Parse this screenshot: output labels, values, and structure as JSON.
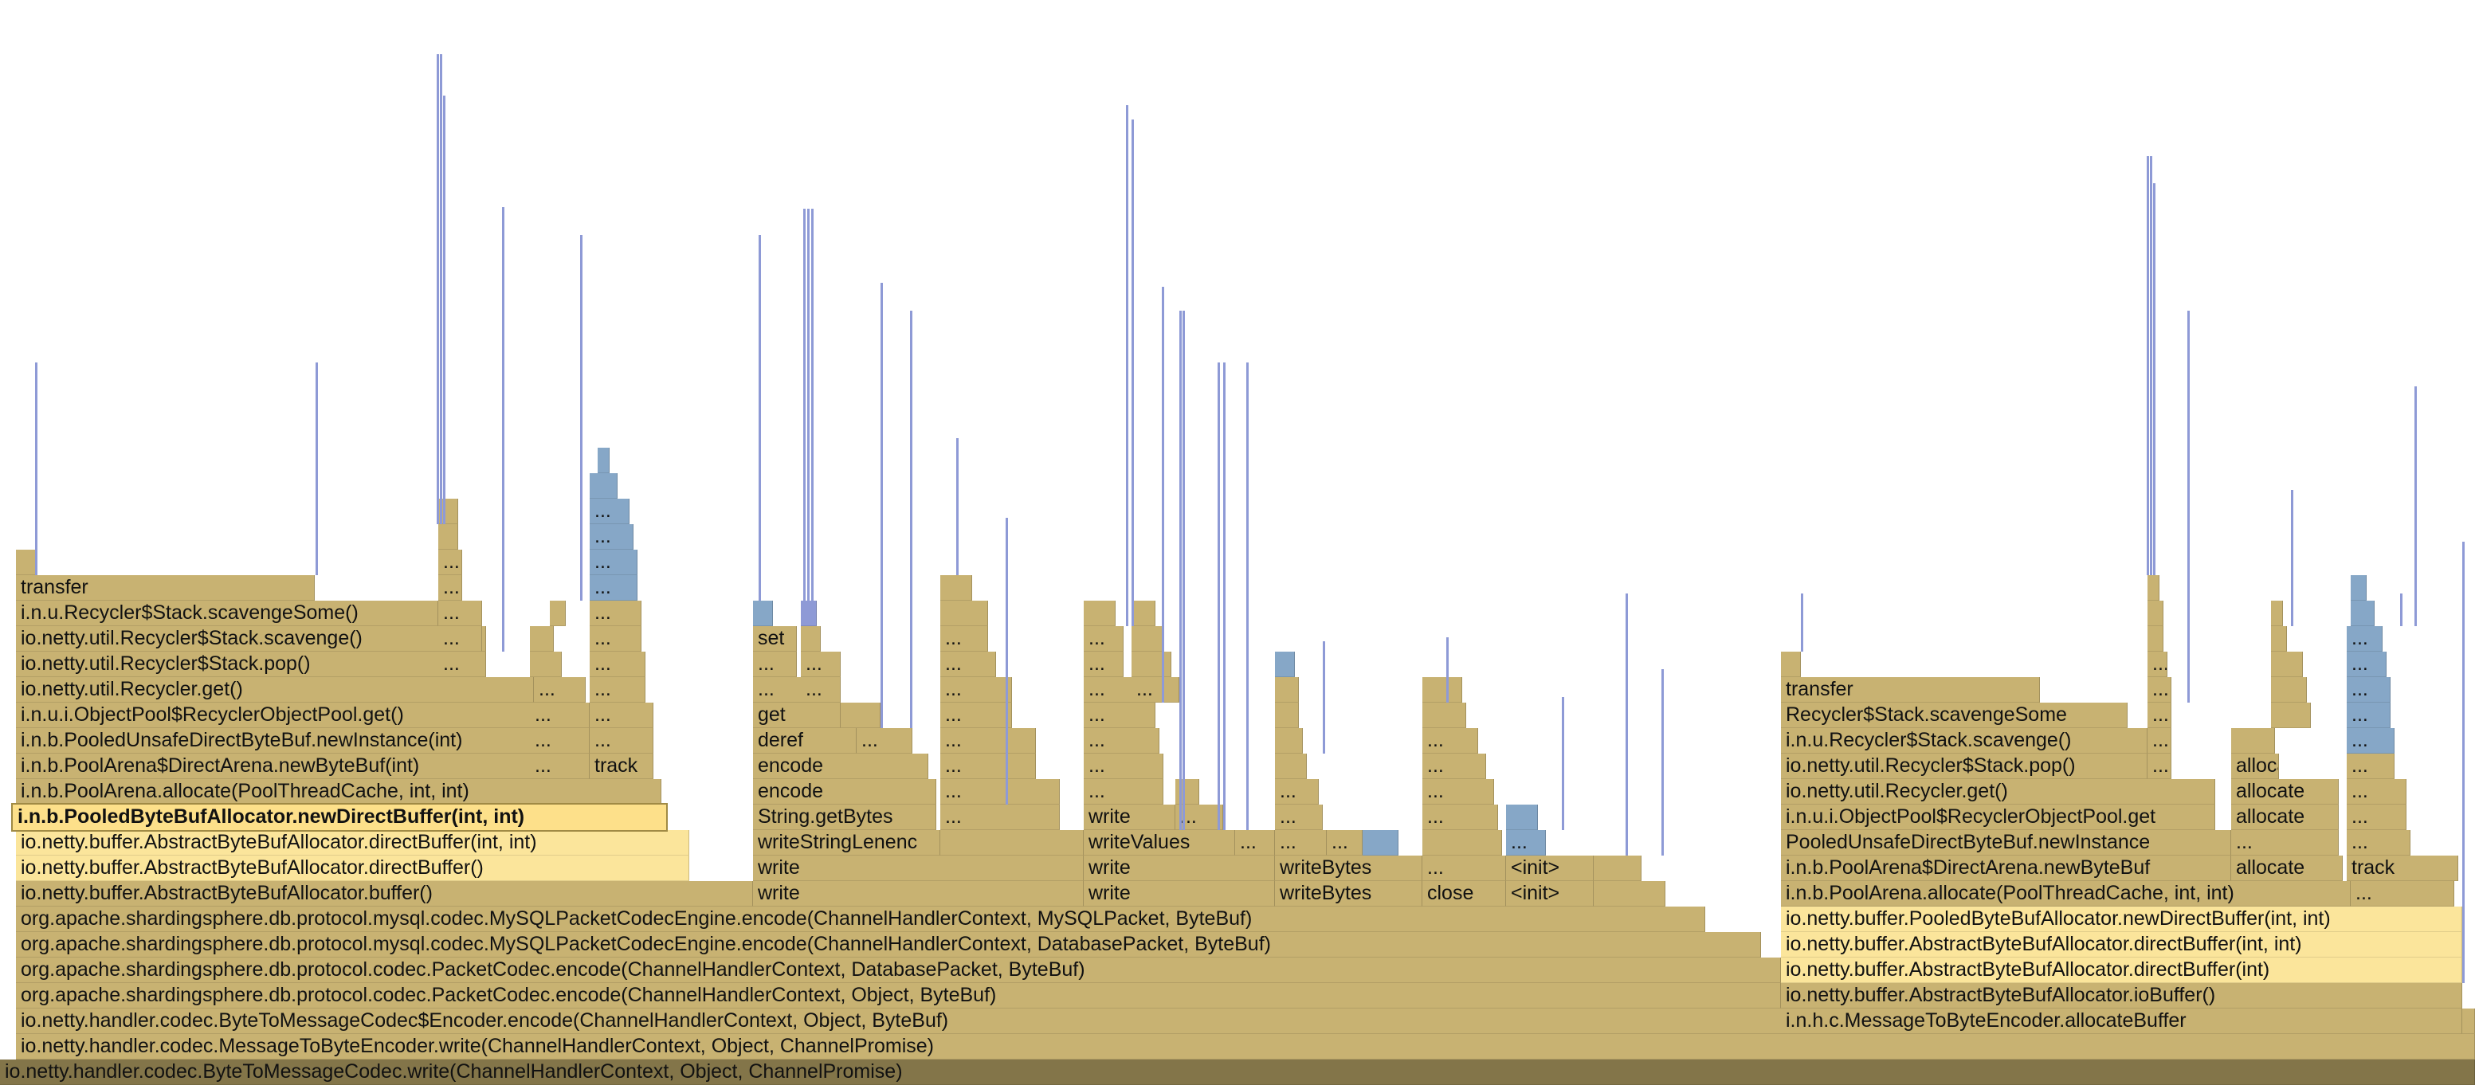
{
  "flamegraph": {
    "colors": {
      "frame": "#c8b272",
      "highlight_path": "#fbe59b",
      "selected": "#fde08a",
      "inlined": "#86a7c7",
      "native": "#8e9ad6",
      "root": "#837549"
    },
    "root_frame": "io.netty.handler.codec.ByteToMessageCodec.write(ChannelHandlerContext, Object, ChannelPromise)",
    "selected_frame": "i.n.b.PooledByteBufAllocator.newDirectBuffer(int, int)",
    "frames": {
      "encoder_write": "io.netty.handler.codec.MessageToByteEncoder.write(ChannelHandlerContext, Object, ChannelPromise)",
      "codec_encoder_encode": "io.netty.handler.codec.ByteToMessageCodec$Encoder.encode(ChannelHandlerContext, Object, ByteBuf)",
      "packet_codec_encode_object": "org.apache.shardingsphere.db.protocol.codec.PacketCodec.encode(ChannelHandlerContext, Object, ByteBuf)",
      "packet_codec_encode_db": "org.apache.shardingsphere.db.protocol.codec.PacketCodec.encode(ChannelHandlerContext, DatabasePacket, ByteBuf)",
      "mysql_engine_encode_db": "org.apache.shardingsphere.db.protocol.mysql.codec.MySQLPacketCodecEngine.encode(ChannelHandlerContext, DatabasePacket, ByteBuf)",
      "mysql_engine_encode_mysql": "org.apache.shardingsphere.db.protocol.mysql.codec.MySQLPacketCodecEngine.encode(ChannelHandlerContext, MySQLPacket, ByteBuf)",
      "alloc_buffer": "io.netty.buffer.AbstractByteBufAllocator.buffer()",
      "alloc_direct_buffer": "io.netty.buffer.AbstractByteBufAllocator.directBuffer()",
      "alloc_direct_buffer_ii": "io.netty.buffer.AbstractByteBufAllocator.directBuffer(int, int)",
      "pool_arena_allocate": "i.n.b.PoolArena.allocate(PoolThreadCache, int, int)",
      "pool_arena_new_byte_buf": "i.n.b.PoolArena$DirectArena.newByteBuf(int)",
      "pooled_unsafe_new_instance": "i.n.b.PooledUnsafeDirectByteBuf.newInstance(int)",
      "object_pool_get": "i.n.u.i.ObjectPool$RecyclerObjectPool.get()",
      "recycler_get": "io.netty.util.Recycler.get()",
      "stack_pop": "io.netty.util.Recycler$Stack.pop()",
      "stack_scavenge": "io.netty.util.Recycler$Stack.scavenge()",
      "stack_scavenge_some": "i.n.u.Recycler$Stack.scavengeSome()",
      "transfer": "transfer",
      "track": "track",
      "ellipsis": "...",
      "write": "write",
      "write_string_lenenc": "writeStringLenenc",
      "string_get_bytes": "String.getBytes",
      "encode": "encode",
      "deref": "deref",
      "get": "get",
      "set": "set",
      "write_values": "writeValues",
      "write_bytes": "writeBytes",
      "close": "close",
      "init": "<init>",
      "mte_allocate_buffer": "i.n.h.c.MessageToByteEncoder.allocateBuffer",
      "alloc_io_buffer": "io.netty.buffer.AbstractByteBufAllocator.ioBuffer()",
      "alloc_direct_buffer_i": "io.netty.buffer.AbstractByteBufAllocator.directBuffer(int)",
      "pooled_new_direct_buffer": "io.netty.buffer.PooledByteBufAllocator.newDirectBuffer(int, int)",
      "pool_arena_allocate_r": "i.n.b.PoolArena.allocate(PoolThreadCache, int, int)",
      "pool_arena_new_byte_buf_r": "i.n.b.PoolArena$DirectArena.newByteBuf",
      "pooled_unsafe_new_instance_r": "PooledUnsafeDirectByteBuf.newInstance",
      "object_pool_get_r": "i.n.u.i.ObjectPool$RecyclerObjectPool.get",
      "recycler_get_r": "io.netty.util.Recycler.get()",
      "stack_pop_r": "io.netty.util.Recycler$Stack.pop()",
      "stack_scavenge_r": "i.n.u.Recycler$Stack.scavenge()",
      "scavenge_some_r": "Recycler$Stack.scavengeSome",
      "allocate": "allocate"
    }
  }
}
